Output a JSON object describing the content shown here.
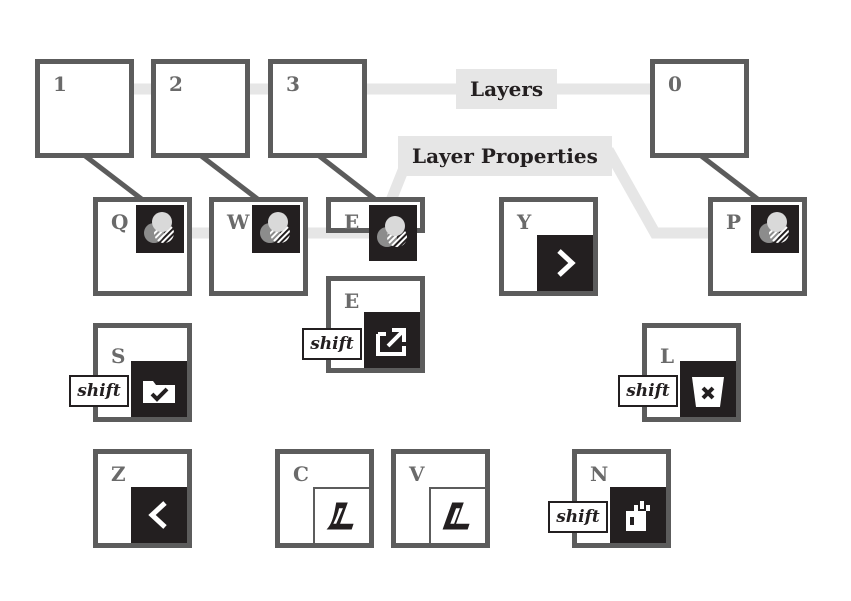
{
  "diagram": {
    "labels": {
      "layers": "Layers",
      "layer_properties": "Layer Properties"
    },
    "number_keys": [
      "1",
      "2",
      "3",
      "0"
    ],
    "property_keys": [
      "Q",
      "W",
      "E",
      "P"
    ],
    "keys": {
      "y": "Y",
      "e_shift": "E",
      "s_shift": "S",
      "l_shift": "L",
      "z": "Z",
      "c": "C",
      "v": "V",
      "n_shift": "N"
    },
    "modifier": "shift",
    "colors": {
      "key_border": "#5c5c5c",
      "icon_bg": "#231f20",
      "connector": "#e6e6e6",
      "link_line": "#5c5c5c"
    },
    "icons": {
      "q": "layer-properties-icon",
      "w": "layer-properties-icon",
      "e": "layer-properties-icon",
      "p": "layer-properties-icon",
      "y": "next-arrow-icon",
      "z": "previous-arrow-icon",
      "e_shift": "export-icon",
      "s_shift": "save-folder-icon",
      "l_shift": "delete-bin-icon",
      "c": "stroke-icon",
      "v": "stroke-icon",
      "n_shift": "new-file-icon"
    }
  }
}
